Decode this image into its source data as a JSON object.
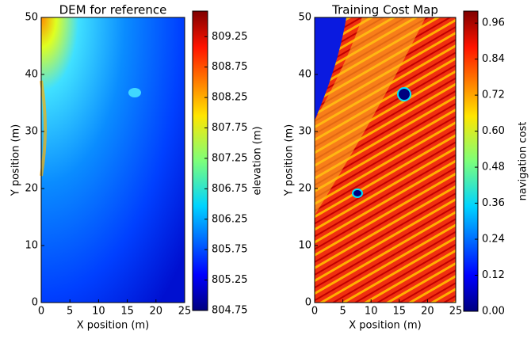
{
  "chart_data": [
    {
      "type": "heatmap",
      "title": "DEM for reference",
      "xlabel": "X position (m)",
      "ylabel": "Y position (m)",
      "xlim": [
        0,
        25
      ],
      "ylim": [
        0,
        50
      ],
      "xticks": [
        0,
        5,
        10,
        15,
        20,
        25
      ],
      "yticks": [
        0,
        10,
        20,
        30,
        40,
        50
      ],
      "colormap": "jet",
      "colorbar_label": "elevation (m)",
      "clim": [
        804.75,
        809.67
      ],
      "cticks": [
        804.75,
        805.25,
        805.75,
        806.25,
        806.75,
        807.25,
        807.75,
        808.25,
        808.75,
        809.25
      ]
    },
    {
      "type": "heatmap",
      "title": "Training Cost Map",
      "xlabel": "X position (m)",
      "ylabel": "Y position (m)",
      "xlim": [
        0,
        25
      ],
      "ylim": [
        0,
        50
      ],
      "xticks": [
        0,
        5,
        10,
        15,
        20,
        25
      ],
      "yticks": [
        0,
        10,
        20,
        30,
        40,
        50
      ],
      "colormap": "jet",
      "colorbar_label": "navigation cost",
      "clim": [
        0,
        1
      ],
      "cticks": [
        {
          "value": 0,
          "label": "0.00"
        },
        0.12,
        0.24,
        0.36,
        0.48,
        {
          "value": 0.6,
          "label": "0.60"
        },
        0.72,
        0.84,
        0.96
      ]
    }
  ]
}
